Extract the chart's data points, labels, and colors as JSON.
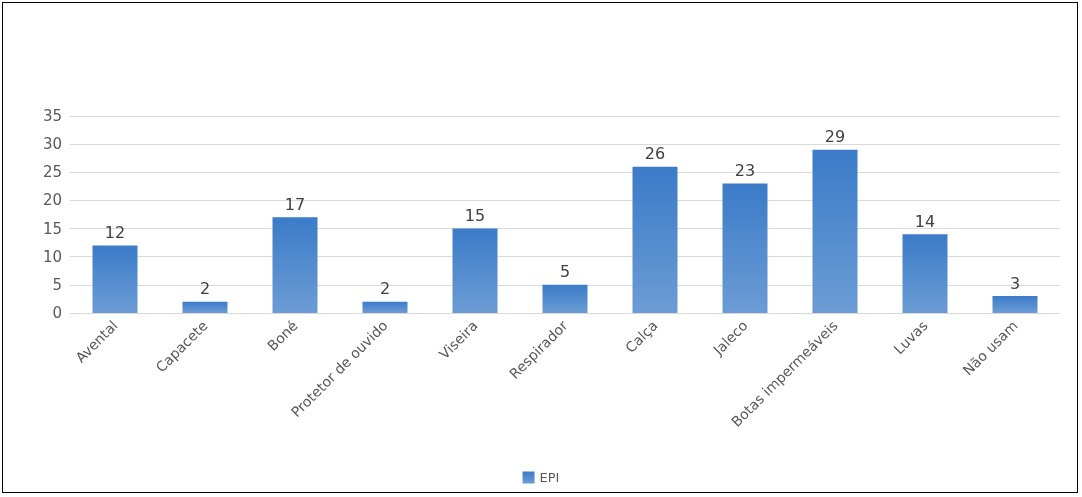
{
  "chart_data": {
    "type": "bar",
    "categories": [
      "Avental",
      "Capacete",
      "Boné",
      "Protetor de ouvido",
      "Viseira",
      "Respirador",
      "Calça",
      "Jaleco",
      "Botas impermeáveis",
      "Luvas",
      "Não usam"
    ],
    "series": [
      {
        "name": "EPI",
        "color": "#3b7bc8",
        "values": [
          12,
          2,
          17,
          2,
          15,
          5,
          26,
          23,
          29,
          14,
          3
        ]
      }
    ],
    "ylim": [
      0,
      35
    ],
    "yticks": [
      0,
      5,
      10,
      15,
      20,
      25,
      30,
      35
    ],
    "grid": "y",
    "legend": "bottom",
    "data_labels": true
  }
}
